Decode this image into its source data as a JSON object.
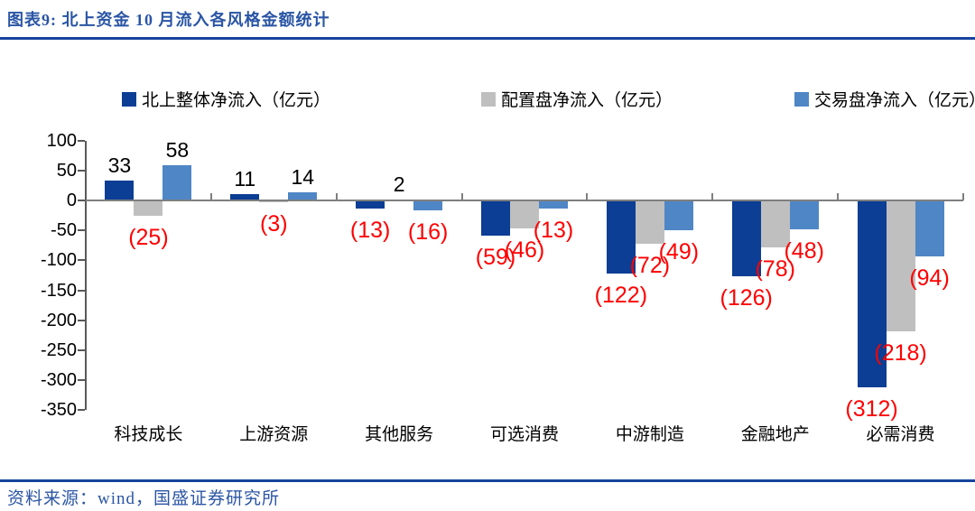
{
  "header": {
    "title": "图表9: 北上资金 10 月流入各风格金额统计"
  },
  "footer": {
    "source": "资料来源：wind，国盛证券研究所"
  },
  "colors": {
    "title_text": "#2A55A5",
    "divider": "#16449C",
    "axis_line": "#595959",
    "zero_line": "#7F7F7F",
    "positive_label": "#000000",
    "negative_label": "#FF0000"
  },
  "chart_data": {
    "type": "bar",
    "title": "北上资金10月流入各风格金额统计",
    "categories": [
      "科技成长",
      "上游资源",
      "其他服务",
      "可选消费",
      "中游制造",
      "金融地产",
      "必需消费"
    ],
    "series": [
      {
        "name": "北上整体净流入（亿元）",
        "color": "#0B3E94",
        "values": [
          33,
          11,
          -13,
          -59,
          -122,
          -126,
          -312
        ]
      },
      {
        "name": "配置盘净流入（亿元）",
        "color": "#BFBFBF",
        "values": [
          -25,
          -3,
          2,
          -46,
          -72,
          -78,
          -218
        ]
      },
      {
        "name": "交易盘净流入（亿元）",
        "color": "#4F86C6",
        "values": [
          58,
          14,
          -16,
          -13,
          -49,
          -48,
          -94
        ]
      }
    ],
    "ylim": [
      -350,
      100
    ],
    "ytick_step": 50,
    "grid": false,
    "legend_position": "top",
    "label_format": {
      "positive": "plain black above bar",
      "negative": "red parentheses below bar"
    }
  }
}
